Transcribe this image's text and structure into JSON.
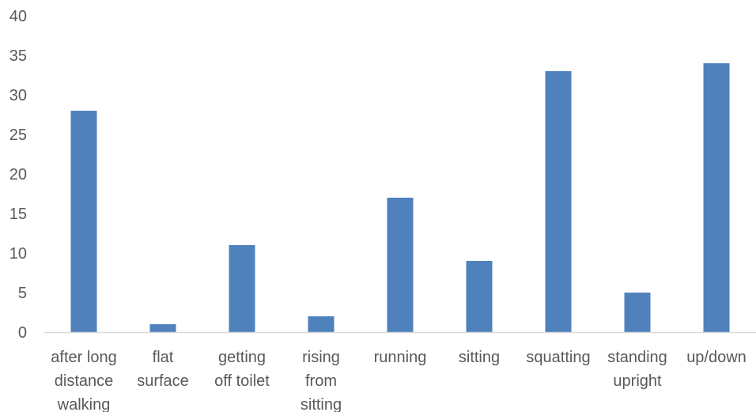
{
  "chart_data": {
    "type": "bar",
    "title": "",
    "xlabel": "",
    "ylabel": "",
    "categories": [
      [
        "after long",
        "distance",
        "walking"
      ],
      [
        "flat",
        "surface"
      ],
      [
        "getting",
        "off toilet"
      ],
      [
        "rising",
        "from",
        "sitting"
      ],
      [
        "running"
      ],
      [
        "sitting"
      ],
      [
        "squatting"
      ],
      [
        "standing",
        "upright"
      ],
      [
        "up/down"
      ]
    ],
    "values": [
      28,
      1,
      11,
      2,
      17,
      9,
      33,
      5,
      34
    ],
    "ylim": [
      0,
      40
    ],
    "yticks": [
      0,
      5,
      10,
      15,
      20,
      25,
      30,
      35,
      40
    ],
    "grid": false,
    "legend": "none",
    "colors": {
      "bar": "#4f81bd",
      "axis": "#d9d9d9",
      "text": "#595959"
    }
  }
}
